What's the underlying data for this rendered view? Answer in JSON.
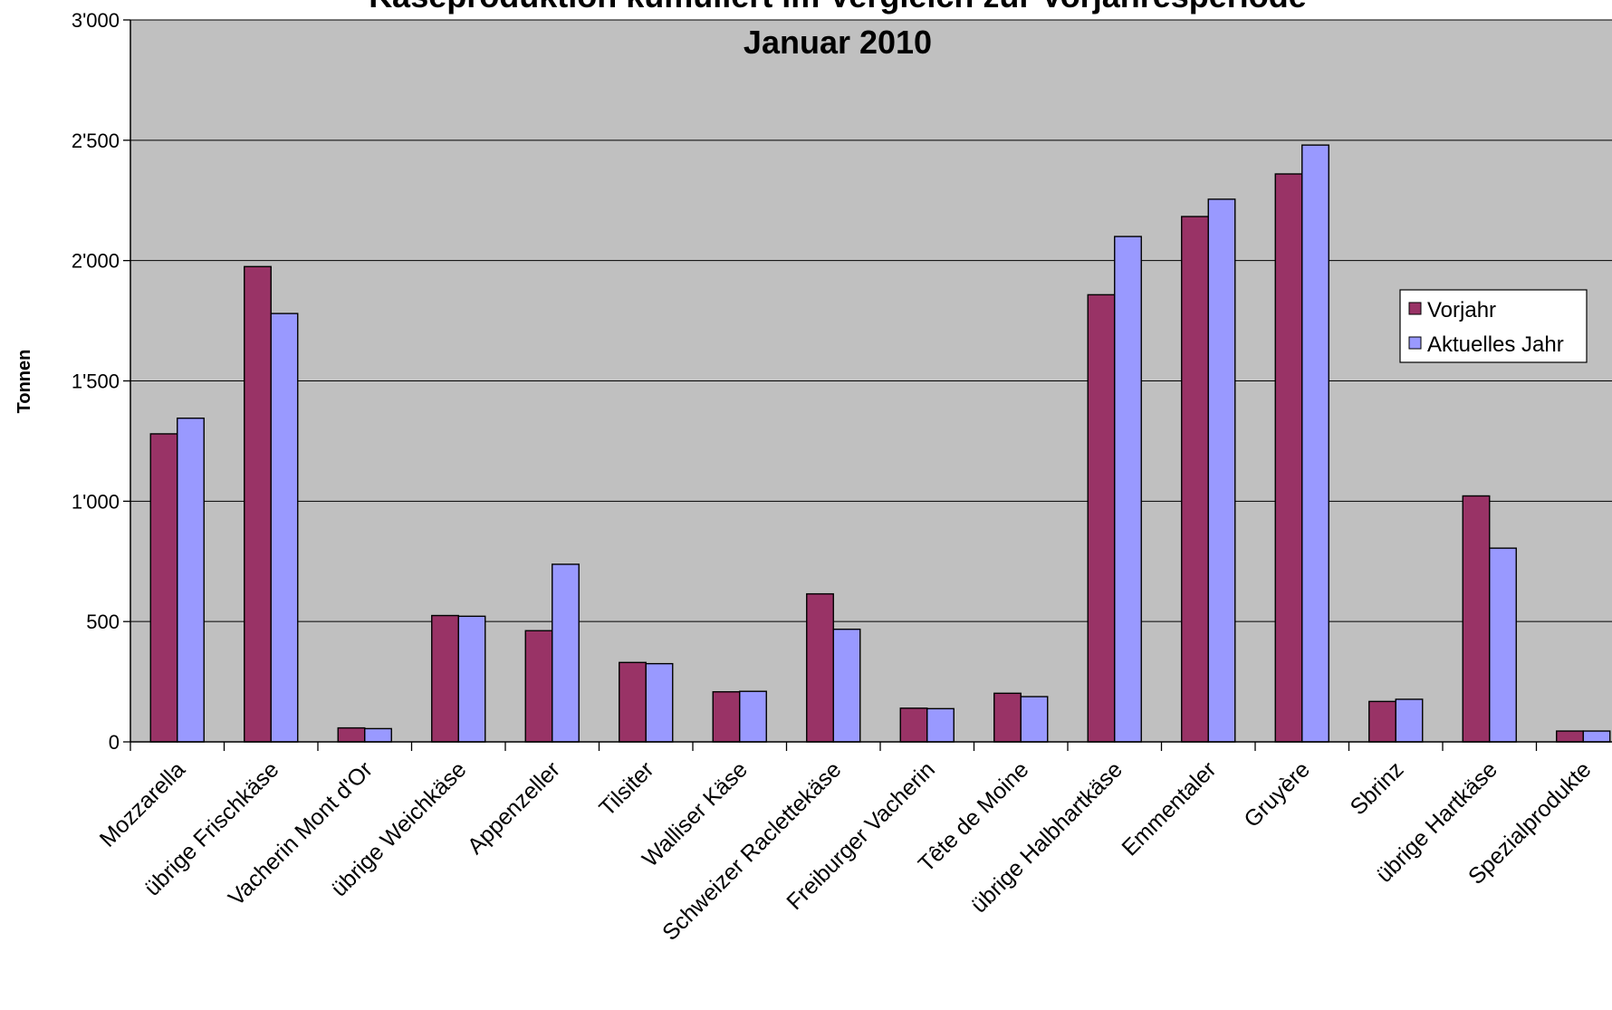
{
  "chart_data": {
    "type": "bar",
    "title_line1": "Käseproduktion kumuliert im Vergleich zur Vorjahresperiode",
    "title_line2": "Januar 2010",
    "xlabel": "",
    "ylabel": "Tonnen",
    "ylim": [
      0,
      3000
    ],
    "yticks": [
      0,
      500,
      1000,
      1500,
      2000,
      2500,
      3000
    ],
    "ytick_labels": [
      "0",
      "500",
      "1'000",
      "1'500",
      "2'000",
      "2'500",
      "3'000"
    ],
    "grid": true,
    "legend_position": "right",
    "categories": [
      "Mozzarella",
      "übrige Frischkäse",
      "Vacherin Mont d'Or",
      "übrige Weichkäse",
      "Appenzeller",
      "Tilsiter",
      "Walliser Käse",
      "Schweizer Raclettekäse",
      "Freiburger Vacherin",
      "Tête de Moine",
      "übrige Halbhartkäse",
      "Emmentaler",
      "Gruyère",
      "Sbrinz",
      "übrige Hartkäse",
      "Spezialprodukte"
    ],
    "series": [
      {
        "name": "Vorjahr",
        "color": "#993366",
        "values": [
          1280,
          1975,
          58,
          525,
          462,
          330,
          208,
          615,
          140,
          202,
          1858,
          2183,
          2360,
          168,
          1022,
          45
        ]
      },
      {
        "name": "Aktuelles Jahr",
        "color": "#9999ff",
        "values": [
          1345,
          1780,
          55,
          522,
          738,
          325,
          210,
          468,
          138,
          188,
          2100,
          2255,
          2480,
          177,
          805,
          45
        ]
      }
    ]
  },
  "colors": {
    "plot_background": "#c0c0c0",
    "gridline": "#000000"
  }
}
